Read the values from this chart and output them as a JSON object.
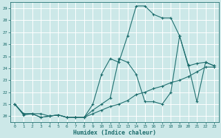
{
  "xlabel": "Humidex (Indice chaleur)",
  "background_color": "#cce8e8",
  "grid_color": "#b8d8d8",
  "line_color": "#1a6b6b",
  "xlim": [
    -0.5,
    23.5
  ],
  "ylim": [
    19.5,
    29.5
  ],
  "yticks": [
    20,
    21,
    22,
    23,
    24,
    25,
    26,
    27,
    28,
    29
  ],
  "xticks": [
    0,
    1,
    2,
    3,
    4,
    5,
    6,
    7,
    8,
    9,
    10,
    11,
    12,
    13,
    14,
    15,
    16,
    17,
    18,
    19,
    20,
    21,
    22,
    23
  ],
  "series": [
    [
      21.0,
      20.1,
      20.2,
      20.2,
      20.0,
      20.1,
      19.9,
      19.9,
      19.9,
      20.2,
      20.5,
      20.8,
      21.0,
      21.3,
      21.8,
      22.0,
      22.3,
      22.5,
      22.8,
      23.0,
      23.3,
      23.7,
      24.1,
      24.1
    ],
    [
      21.0,
      20.2,
      20.2,
      19.9,
      20.0,
      20.1,
      19.9,
      19.9,
      19.9,
      21.0,
      23.5,
      24.8,
      24.5,
      26.7,
      29.2,
      29.2,
      28.5,
      28.2,
      28.2,
      26.7,
      24.2,
      24.4,
      24.5,
      24.2
    ],
    [
      21.0,
      20.2,
      20.2,
      19.9,
      20.0,
      20.1,
      19.9,
      19.9,
      19.9,
      20.5,
      21.0,
      21.5,
      24.8,
      24.5,
      23.5,
      21.2,
      21.2,
      21.0,
      22.0,
      26.7,
      24.3,
      21.2,
      24.5,
      24.2
    ]
  ]
}
